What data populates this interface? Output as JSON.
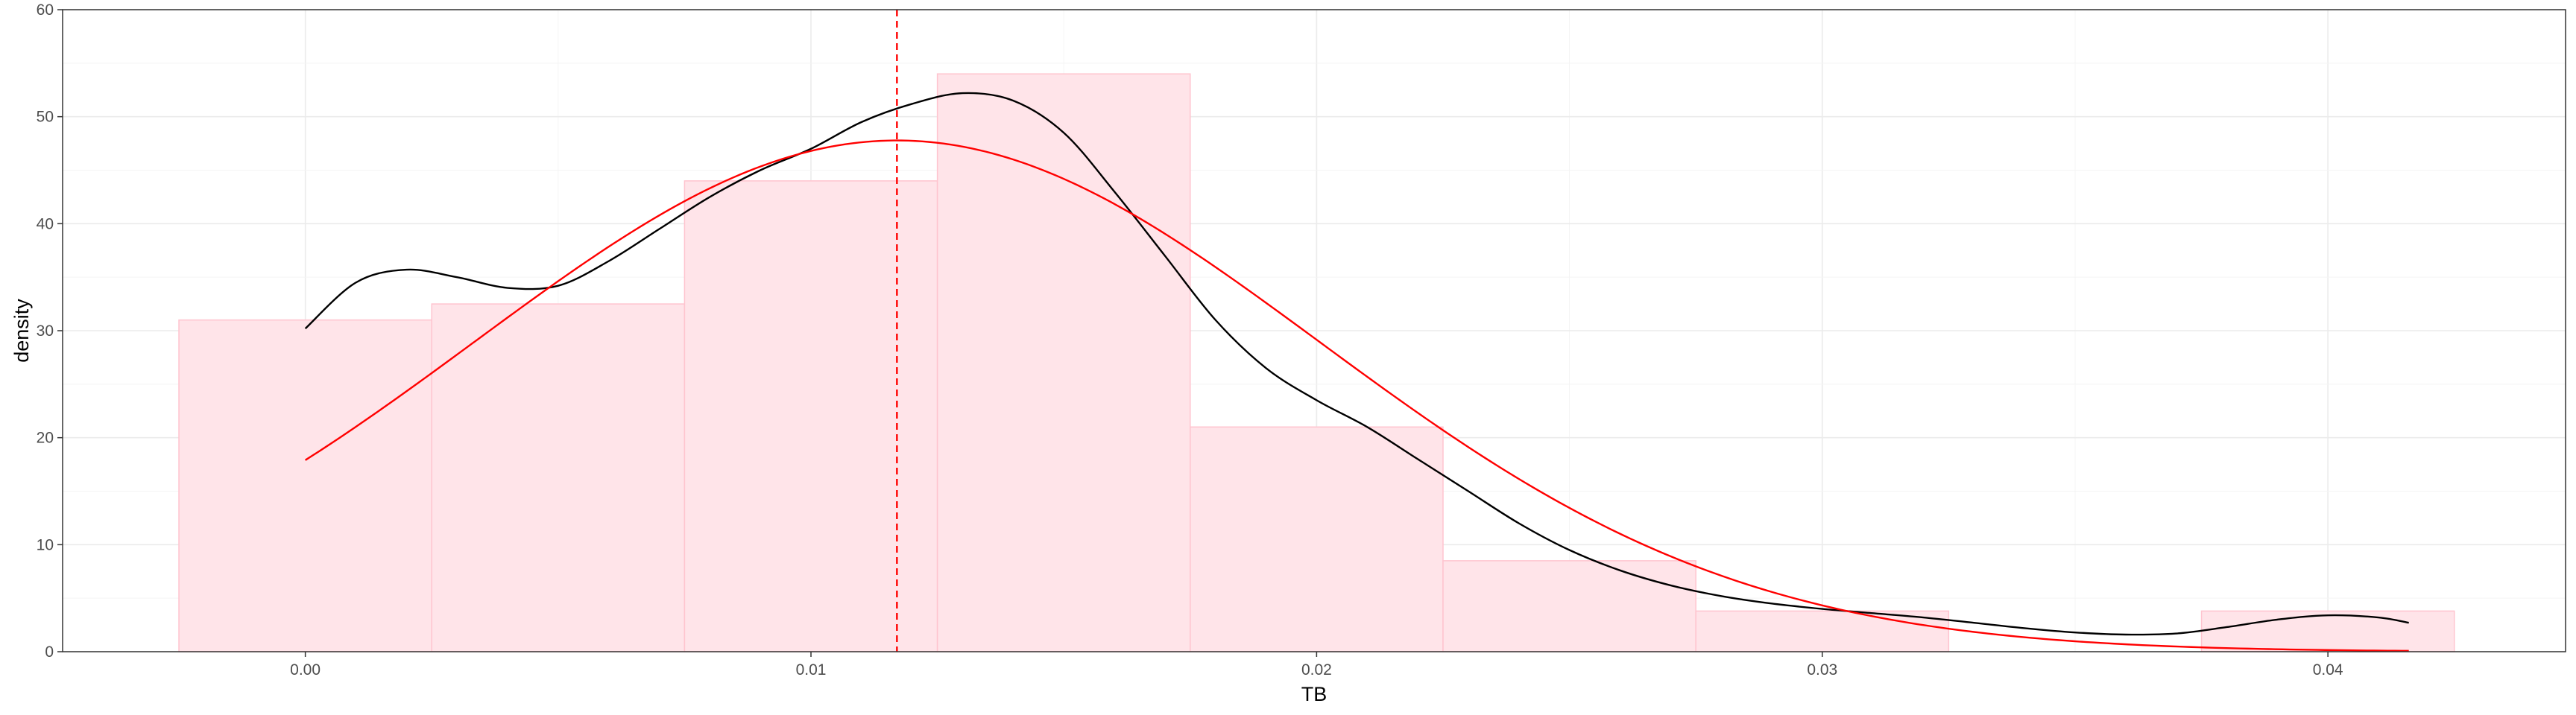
{
  "chart_data": {
    "type": "bar",
    "subtype": "histogram-with-density",
    "xlabel": "TB",
    "ylabel": "density",
    "xlim": [
      -0.0048,
      0.0447
    ],
    "ylim": [
      0,
      60
    ],
    "x_ticks": [
      0.0,
      0.01,
      0.02,
      0.03,
      0.04
    ],
    "x_tick_labels": [
      "0.00",
      "0.01",
      "0.02",
      "0.03",
      "0.04"
    ],
    "y_ticks": [
      0,
      10,
      20,
      30,
      40,
      50,
      60
    ],
    "y_tick_labels": [
      "0",
      "10",
      "20",
      "30",
      "40",
      "50",
      "60"
    ],
    "grid": true,
    "histogram": {
      "fill": "#ffe4e9",
      "stroke": "#ffc4cf",
      "bins": [
        {
          "x0": -0.0025,
          "x1": 0.0025,
          "density": 31.0
        },
        {
          "x0": 0.0025,
          "x1": 0.0075,
          "density": 32.5
        },
        {
          "x0": 0.0075,
          "x1": 0.0125,
          "density": 44.0
        },
        {
          "x0": 0.0125,
          "x1": 0.0175,
          "density": 54.0
        },
        {
          "x0": 0.0175,
          "x1": 0.0225,
          "density": 21.0
        },
        {
          "x0": 0.0225,
          "x1": 0.0275,
          "density": 8.5
        },
        {
          "x0": 0.0275,
          "x1": 0.0325,
          "density": 3.8
        },
        {
          "x0": 0.0325,
          "x1": 0.0375,
          "density": 0.0
        },
        {
          "x0": 0.0375,
          "x1": 0.0425,
          "density": 3.8
        }
      ]
    },
    "kernel_density": {
      "color": "#000000",
      "points": [
        [
          0.0,
          30.2
        ],
        [
          0.001,
          34.5
        ],
        [
          0.002,
          35.7
        ],
        [
          0.003,
          35.0
        ],
        [
          0.004,
          34.0
        ],
        [
          0.005,
          34.2
        ],
        [
          0.006,
          36.5
        ],
        [
          0.007,
          39.5
        ],
        [
          0.008,
          42.5
        ],
        [
          0.009,
          45.0
        ],
        [
          0.01,
          47.0
        ],
        [
          0.011,
          49.5
        ],
        [
          0.012,
          51.2
        ],
        [
          0.013,
          52.2
        ],
        [
          0.014,
          51.5
        ],
        [
          0.015,
          48.5
        ],
        [
          0.016,
          43.0
        ],
        [
          0.017,
          37.0
        ],
        [
          0.018,
          31.0
        ],
        [
          0.019,
          26.5
        ],
        [
          0.02,
          23.5
        ],
        [
          0.021,
          21.0
        ],
        [
          0.022,
          18.0
        ],
        [
          0.023,
          15.0
        ],
        [
          0.024,
          12.0
        ],
        [
          0.025,
          9.5
        ],
        [
          0.026,
          7.6
        ],
        [
          0.027,
          6.2
        ],
        [
          0.028,
          5.2
        ],
        [
          0.029,
          4.5
        ],
        [
          0.03,
          4.0
        ],
        [
          0.031,
          3.6
        ],
        [
          0.032,
          3.2
        ],
        [
          0.033,
          2.7
        ],
        [
          0.034,
          2.2
        ],
        [
          0.035,
          1.8
        ],
        [
          0.036,
          1.6
        ],
        [
          0.037,
          1.7
        ],
        [
          0.038,
          2.3
        ],
        [
          0.039,
          3.0
        ],
        [
          0.04,
          3.4
        ],
        [
          0.041,
          3.2
        ],
        [
          0.0416,
          2.7
        ]
      ]
    },
    "normal_density": {
      "color": "#ff0000",
      "mean": 0.0117,
      "sd": 0.00835
    },
    "mean_line": {
      "x": 0.0117,
      "color": "#ff0000",
      "style": "dashed"
    }
  }
}
